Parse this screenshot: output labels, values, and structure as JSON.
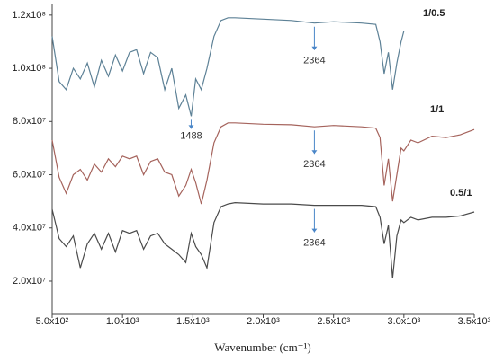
{
  "chart_data": {
    "type": "line",
    "x_label": "Wavenumber (cm⁻¹)",
    "x": [
      500,
      550,
      600,
      650,
      700,
      750,
      800,
      850,
      900,
      950,
      1000,
      1050,
      1100,
      1150,
      1200,
      1250,
      1300,
      1350,
      1400,
      1450,
      1488,
      1520,
      1560,
      1600,
      1650,
      1700,
      1750,
      1800,
      2000,
      2200,
      2364,
      2500,
      2700,
      2800,
      2830,
      2860,
      2890,
      2920,
      2950,
      2980,
      3000,
      3050,
      3100,
      3200,
      3300,
      3400,
      3500
    ],
    "series": [
      {
        "name": "1/0.5",
        "color": "#5d8196",
        "values": [
          112000000.0,
          95000000.0,
          92000000.0,
          100000000.0,
          96000000.0,
          102000000.0,
          93000000.0,
          103000000.0,
          97000000.0,
          105000000.0,
          99000000.0,
          106000000.0,
          107000000.0,
          98000000.0,
          106000000.0,
          104000000.0,
          92000000.0,
          100000000.0,
          85000000.0,
          90000000.0,
          82000000.0,
          96000000.0,
          92000000.0,
          100000000.0,
          112000000.0,
          118000000.0,
          119000000.0,
          119000000.0,
          118500000.0,
          118000000.0,
          117000000.0,
          117500000.0,
          117000000.0,
          116500000.0,
          110000000.0,
          98000000.0,
          106000000.0,
          92000000.0,
          102000000.0,
          110000000.0,
          114000000.0,
          null,
          null,
          null,
          null,
          null,
          null
        ]
      },
      {
        "name": "1/1",
        "color": "#a5635c",
        "values": [
          73000000.0,
          59000000.0,
          53000000.0,
          60000000.0,
          62000000.0,
          58000000.0,
          64000000.0,
          61000000.0,
          66000000.0,
          63000000.0,
          67000000.0,
          66000000.0,
          67000000.0,
          60000000.0,
          65000000.0,
          66000000.0,
          61000000.0,
          60000000.0,
          52000000.0,
          56000000.0,
          62000000.0,
          57000000.0,
          49000000.0,
          58000000.0,
          72000000.0,
          78000000.0,
          79500000.0,
          79500000.0,
          79000000.0,
          78800000.0,
          78000000.0,
          78500000.0,
          78000000.0,
          77500000.0,
          74000000.0,
          56000000.0,
          66000000.0,
          50000000.0,
          60000000.0,
          70000000.0,
          69000000.0,
          73000000.0,
          72000000.0,
          74500000.0,
          74000000.0,
          75000000.0,
          77000000.0
        ]
      },
      {
        "name": "0.5/1",
        "color": "#4a4a4a",
        "values": [
          47000000.0,
          36000000.0,
          33000000.0,
          37000000.0,
          25000000.0,
          34000000.0,
          38000000.0,
          32000000.0,
          38000000.0,
          31000000.0,
          39000000.0,
          38000000.0,
          39000000.0,
          32000000.0,
          37000000.0,
          38000000.0,
          34000000.0,
          32000000.0,
          30000000.0,
          27000000.0,
          38000000.0,
          33000000.0,
          30000000.0,
          25000000.0,
          42000000.0,
          48000000.0,
          49000000.0,
          49500000.0,
          49000000.0,
          49000000.0,
          48500000.0,
          48500000.0,
          48500000.0,
          48000000.0,
          44000000.0,
          34000000.0,
          41000000.0,
          21000000.0,
          37000000.0,
          43000000.0,
          42000000.0,
          44000000.0,
          43000000.0,
          44000000.0,
          44000000.0,
          44500000.0,
          46000000.0
        ]
      }
    ],
    "xlim": [
      500,
      3500
    ],
    "xticks": [
      {
        "value": 500,
        "label": "5.0x10²"
      },
      {
        "value": 1000,
        "label": "1.0x10³"
      },
      {
        "value": 1500,
        "label": "1.5x10³"
      },
      {
        "value": 2000,
        "label": "2.0x10³"
      },
      {
        "value": 2500,
        "label": "2.5x10³"
      },
      {
        "value": 3000,
        "label": "3.0x10³"
      },
      {
        "value": 3500,
        "label": "3.5x10³"
      }
    ],
    "ylim": [
      7500000.0,
      124000000.0
    ],
    "yticks": [
      {
        "value": 20000000.0,
        "label": "2.0x10⁷"
      },
      {
        "value": 40000000.0,
        "label": "4.0x10⁷"
      },
      {
        "value": 60000000.0,
        "label": "6.0x10⁷"
      },
      {
        "value": 80000000.0,
        "label": "8.0x10⁷"
      },
      {
        "value": 100000000.0,
        "label": "1.0x10⁸"
      },
      {
        "value": 120000000.0,
        "label": "1.2x10⁸"
      }
    ],
    "annotations": [
      {
        "label": "1488",
        "x": 1488
      },
      {
        "label": "2364",
        "x": 2364
      },
      {
        "label": "2364",
        "x": 2364
      },
      {
        "label": "2364",
        "x": 2364
      }
    ]
  }
}
